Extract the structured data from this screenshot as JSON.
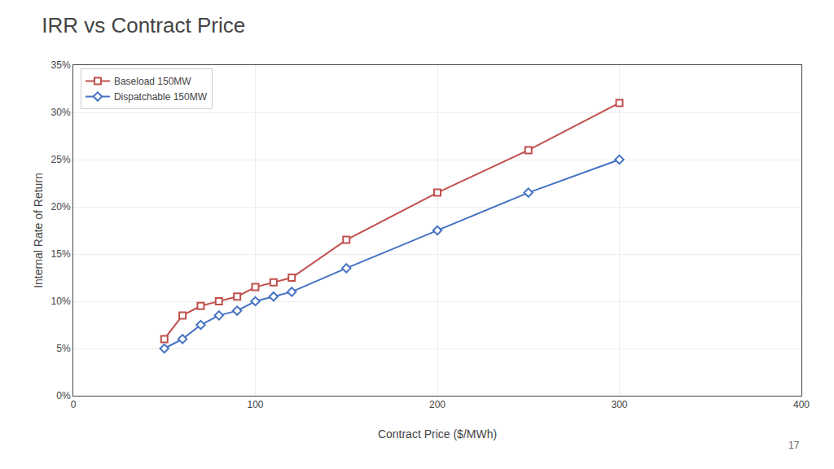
{
  "chart_data": {
    "type": "line",
    "title": "IRR vs Contract Price",
    "xlabel": "Contract Price ($/MWh)",
    "ylabel": "Internal Rate of Return",
    "series": [
      {
        "name": "Baseload 150MW",
        "color": "#c0504d",
        "marker": "square",
        "x": [
          50,
          60,
          70,
          80,
          90,
          100,
          110,
          120,
          150,
          200,
          250,
          300
        ],
        "values": [
          0.06,
          0.085,
          0.095,
          0.1,
          0.105,
          0.115,
          0.12,
          0.125,
          0.165,
          0.215,
          0.26,
          0.31
        ]
      },
      {
        "name": "Dispatchable 150MW",
        "color": "#4472c4",
        "marker": "diamond",
        "x": [
          50,
          60,
          70,
          80,
          90,
          100,
          110,
          120,
          150,
          200,
          250,
          300
        ],
        "values": [
          0.05,
          0.06,
          0.075,
          0.085,
          0.09,
          0.1,
          0.105,
          0.11,
          0.135,
          0.175,
          0.215,
          0.25
        ]
      }
    ],
    "xlim": [
      0,
      400
    ],
    "xticks": [
      0,
      100,
      200,
      300,
      400
    ],
    "ylim": [
      0,
      0.35
    ],
    "yticks": [
      {
        "value": 0.0,
        "label": "0%"
      },
      {
        "value": 0.05,
        "label": "5%"
      },
      {
        "value": 0.1,
        "label": "10%"
      },
      {
        "value": 0.15,
        "label": "15%"
      },
      {
        "value": 0.2,
        "label": "20%"
      },
      {
        "value": 0.25,
        "label": "25%"
      },
      {
        "value": 0.3,
        "label": "30%"
      },
      {
        "value": 0.35,
        "label": "35%"
      }
    ],
    "grid": true,
    "legend": "upper left",
    "annotations": [
      "17"
    ]
  }
}
